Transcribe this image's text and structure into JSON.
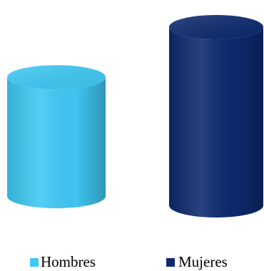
{
  "chart_data": {
    "type": "bar",
    "series": [
      {
        "name": "Hombres",
        "color": "#3fc8f4",
        "values": [
          40
        ]
      },
      {
        "name": "Mujeres",
        "color": "#0d2a6e",
        "values": [
          60
        ]
      }
    ]
  }
}
